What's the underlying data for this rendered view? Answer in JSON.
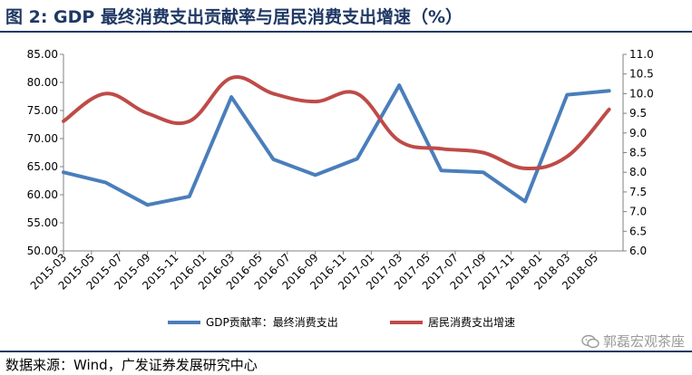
{
  "title": "图 2:  GDP 最终消费支出贡献率与居民消费支出增速（%）",
  "source": "数据来源：Wind，广发证券发展研究中心",
  "watermark": "郭磊宏观茶座",
  "watermark_icon": "wechat-icon",
  "chart_data": {
    "type": "line",
    "title": "",
    "xlabel": "",
    "ylabel": "",
    "categories": [
      "2015-03",
      "2015-05",
      "2015-07",
      "2015-09",
      "2015-11",
      "2016-01",
      "2016-03",
      "2016-05",
      "2016-07",
      "2016-09",
      "2016-11",
      "2017-01",
      "2017-03",
      "2017-05",
      "2017-07",
      "2017-09",
      "2017-11",
      "2018-01",
      "2018-03",
      "2018-05"
    ],
    "y_left": {
      "min": 50,
      "max": 85,
      "step": 5,
      "decimals": 2
    },
    "y_right": {
      "min": 6.0,
      "max": 11.0,
      "step": 0.5,
      "decimals": 1
    },
    "legend_position": "bottom",
    "grid": false,
    "series": [
      {
        "name": "GDP贡献率：最终消费支出",
        "axis": "left",
        "color": "#4a7ebb",
        "x": [
          "2015-03",
          "2015-06",
          "2015-09",
          "2015-12",
          "2016-03",
          "2016-06",
          "2016-09",
          "2016-12",
          "2017-03",
          "2017-06",
          "2017-09",
          "2017-12",
          "2018-03",
          "2018-06"
        ],
        "values": [
          64.0,
          62.2,
          58.2,
          59.7,
          77.4,
          66.3,
          63.5,
          66.4,
          79.5,
          64.3,
          64.0,
          58.8,
          77.8,
          78.5
        ]
      },
      {
        "name": "居民消费支出增速",
        "axis": "right",
        "color": "#be4b48",
        "x": [
          "2015-03",
          "2015-06",
          "2015-09",
          "2015-12",
          "2016-03",
          "2016-06",
          "2016-09",
          "2016-12",
          "2017-03",
          "2017-06",
          "2017-09",
          "2017-12",
          "2018-03",
          "2018-06"
        ],
        "values": [
          9.3,
          10.0,
          9.5,
          9.3,
          10.4,
          10.0,
          9.8,
          10.0,
          8.8,
          8.6,
          8.5,
          8.1,
          8.4,
          9.6
        ]
      }
    ]
  }
}
